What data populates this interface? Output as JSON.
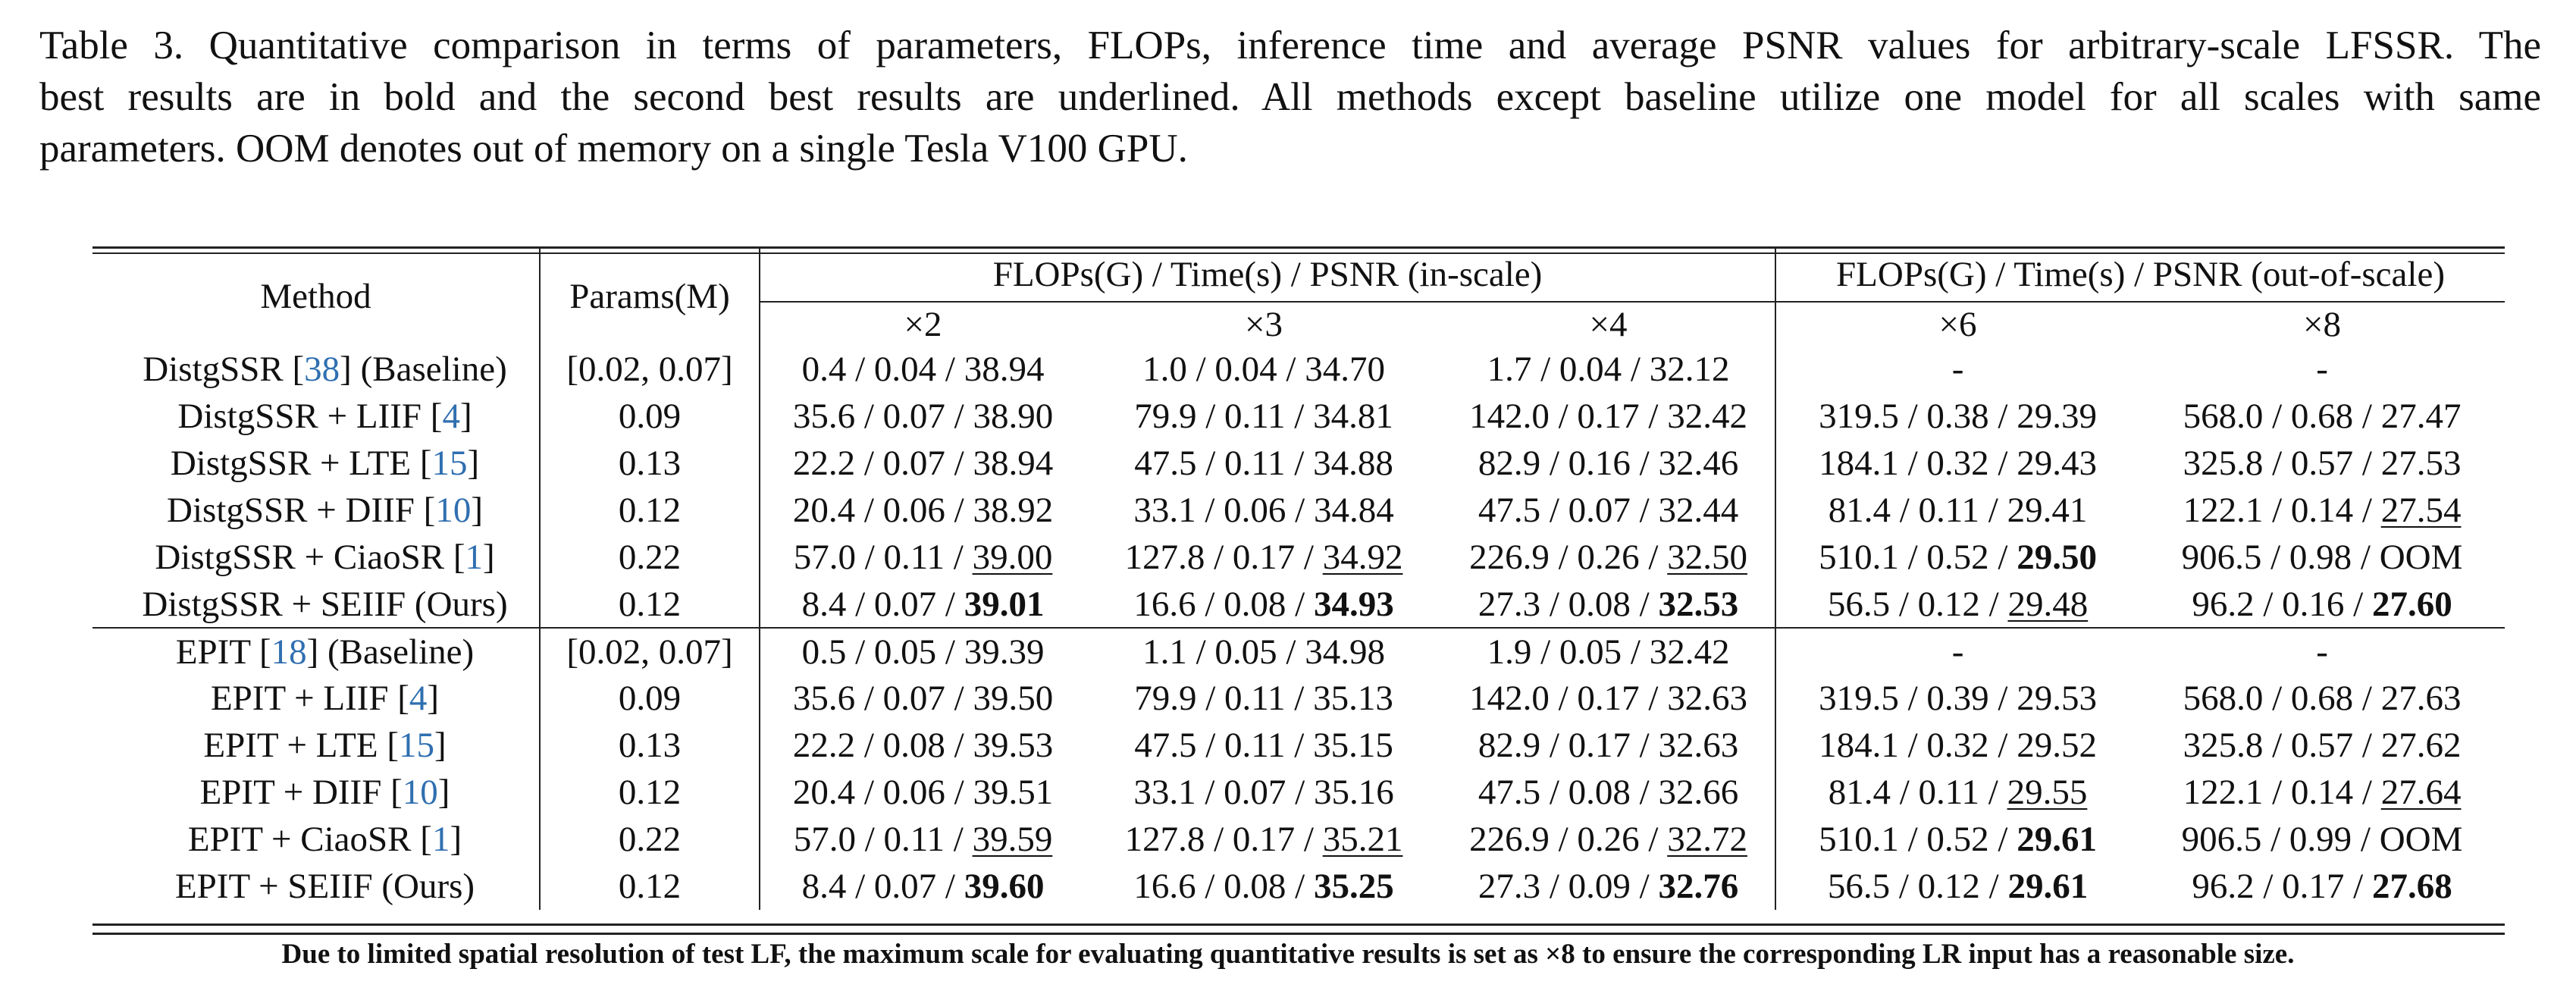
{
  "caption": {
    "line1": "Table 3. Quantitative comparison in terms of parameters, FLOPs, inference time and average PSNR values for arbitrary-scale LFSSR. The",
    "line2": "best results are in bold and the second best results are underlined. All methods except baseline utilize one model for all scales with same",
    "line3": "parameters. OOM denotes out of memory on a single Tesla V100 GPU."
  },
  "header": {
    "method": "Method",
    "params": "Params(M)",
    "in_scale": "FLOPs(G) / Time(s) / PSNR (in-scale)",
    "out_scale": "FLOPs(G) / Time(s) / PSNR (out-of-scale)",
    "x2": "×2",
    "x3": "×3",
    "x4": "×4",
    "x6": "×6",
    "x8": "×8"
  },
  "rows": [
    {
      "name": "DistgSSR ",
      "ref": "38",
      "suffix": " (Baseline)",
      "params": "[0.02, 0.07]",
      "x2": [
        "0.4 / 0.04 / ",
        "38.94"
      ],
      "x3": [
        "1.0 / 0.04 / ",
        "34.70"
      ],
      "x4": [
        "1.7 / 0.04 / ",
        "32.12"
      ],
      "x6": [
        "",
        "-"
      ],
      "x8": [
        "",
        "-"
      ]
    },
    {
      "name": "DistgSSR + LIIF ",
      "ref": "4",
      "suffix": "",
      "params": "0.09",
      "x2": [
        "35.6 / 0.07 / ",
        "38.90"
      ],
      "x3": [
        "79.9 / 0.11 / ",
        "34.81"
      ],
      "x4": [
        "142.0 / 0.17 / ",
        "32.42"
      ],
      "x6": [
        "319.5 / 0.38 / ",
        "29.39"
      ],
      "x8": [
        "568.0 / 0.68 / ",
        "27.47"
      ]
    },
    {
      "name": "DistgSSR + LTE ",
      "ref": "15",
      "suffix": "",
      "params": "0.13",
      "x2": [
        "22.2 / 0.07 / ",
        "38.94"
      ],
      "x3": [
        "47.5 / 0.11 / ",
        "34.88"
      ],
      "x4": [
        "82.9 / 0.16 / ",
        "32.46"
      ],
      "x6": [
        "184.1 / 0.32 / ",
        "29.43"
      ],
      "x8": [
        "325.8 / 0.57 / ",
        "27.53"
      ]
    },
    {
      "name": "DistgSSR + DIIF ",
      "ref": "10",
      "suffix": "",
      "params": "0.12",
      "x2": [
        "20.4 / 0.06 / ",
        "38.92"
      ],
      "x3": [
        "33.1 / 0.06 / ",
        "34.84"
      ],
      "x4": [
        "47.5 / 0.07 / ",
        "32.44"
      ],
      "x6": [
        "81.4 / 0.11 / ",
        "29.41"
      ],
      "x8": [
        "122.1 / 0.14 / ",
        "27.54"
      ]
    },
    {
      "name": "DistgSSR + CiaoSR ",
      "ref": "1",
      "suffix": "",
      "params": "0.22",
      "x2": [
        "57.0 / 0.11 / ",
        "39.00"
      ],
      "x3": [
        "127.8 / 0.17 / ",
        "34.92"
      ],
      "x4": [
        "226.9 / 0.26 / ",
        "32.50"
      ],
      "x6": [
        "510.1 / 0.52 / ",
        "29.50"
      ],
      "x8": [
        "906.5 / 0.98 / ",
        "OOM"
      ]
    },
    {
      "name": "DistgSSR + SEIIF (Ours)",
      "ref": "",
      "suffix": "",
      "params": "0.12",
      "x2": [
        "8.4 / 0.07 / ",
        "39.01"
      ],
      "x3": [
        "16.6 / 0.08 / ",
        "34.93"
      ],
      "x4": [
        "27.3 / 0.08 / ",
        "32.53"
      ],
      "x6": [
        "56.5 / 0.12 / ",
        "29.48"
      ],
      "x8": [
        "96.2 / 0.16 / ",
        "27.60"
      ]
    },
    {
      "name": "EPIT ",
      "ref": "18",
      "suffix": " (Baseline)",
      "params": "[0.02, 0.07]",
      "x2": [
        "0.5 / 0.05 / ",
        "39.39"
      ],
      "x3": [
        "1.1 / 0.05 / ",
        "34.98"
      ],
      "x4": [
        "1.9 / 0.05 / ",
        "32.42"
      ],
      "x6": [
        "",
        "-"
      ],
      "x8": [
        "",
        "-"
      ]
    },
    {
      "name": "EPIT + LIIF ",
      "ref": "4",
      "suffix": "",
      "params": "0.09",
      "x2": [
        "35.6 / 0.07 / ",
        "39.50"
      ],
      "x3": [
        "79.9 / 0.11 / ",
        "35.13"
      ],
      "x4": [
        "142.0 / 0.17 / ",
        "32.63"
      ],
      "x6": [
        "319.5 / 0.39 / ",
        "29.53"
      ],
      "x8": [
        "568.0 / 0.68 / ",
        "27.63"
      ]
    },
    {
      "name": "EPIT + LTE ",
      "ref": "15",
      "suffix": "",
      "params": "0.13",
      "x2": [
        "22.2 / 0.08 / ",
        "39.53"
      ],
      "x3": [
        "47.5 / 0.11 / ",
        "35.15"
      ],
      "x4": [
        "82.9 / 0.17 / ",
        "32.63"
      ],
      "x6": [
        "184.1 / 0.32 / ",
        "29.52"
      ],
      "x8": [
        "325.8 / 0.57 / ",
        "27.62"
      ]
    },
    {
      "name": "EPIT + DIIF ",
      "ref": "10",
      "suffix": "",
      "params": "0.12",
      "x2": [
        "20.4 / 0.06 / ",
        "39.51"
      ],
      "x3": [
        "33.1 / 0.07 / ",
        "35.16"
      ],
      "x4": [
        "47.5 / 0.08 / ",
        "32.66"
      ],
      "x6": [
        "81.4 / 0.11 / ",
        "29.55"
      ],
      "x8": [
        "122.1 / 0.14 / ",
        "27.64"
      ]
    },
    {
      "name": "EPIT + CiaoSR ",
      "ref": "1",
      "suffix": "",
      "params": "0.22",
      "x2": [
        "57.0 / 0.11 / ",
        "39.59"
      ],
      "x3": [
        "127.8 / 0.17 / ",
        "35.21"
      ],
      "x4": [
        "226.9 / 0.26 / ",
        "32.72"
      ],
      "x6": [
        "510.1 / 0.52 / ",
        "29.61"
      ],
      "x8": [
        "906.5 / 0.99 / ",
        "OOM"
      ]
    },
    {
      "name": "EPIT + SEIIF (Ours)",
      "ref": "",
      "suffix": "",
      "params": "0.12",
      "x2": [
        "8.4 / 0.07 / ",
        "39.60"
      ],
      "x3": [
        "16.6 / 0.08 / ",
        "35.25"
      ],
      "x4": [
        "27.3 / 0.09 / ",
        "32.76"
      ],
      "x6": [
        "56.5 / 0.12 / ",
        "29.61"
      ],
      "x8": [
        "96.2 / 0.17 / ",
        "27.68"
      ]
    }
  ],
  "emphasis": {
    "bold": [
      "5.x2",
      "5.x3",
      "5.x4",
      "4.x6",
      "5.x8",
      "11.x2",
      "11.x3",
      "11.x4",
      "10.x6",
      "11.x6",
      "11.x8"
    ],
    "underline": [
      "4.x2",
      "4.x3",
      "4.x4",
      "5.x6",
      "3.x8",
      "10.x2",
      "10.x3",
      "10.x4",
      "9.x6",
      "9.x8"
    ]
  },
  "footnote": "Due to limited spatial resolution of test LF, the maximum scale for evaluating quantitative results is set as ×8 to ensure the corresponding LR input has a reasonable size."
}
